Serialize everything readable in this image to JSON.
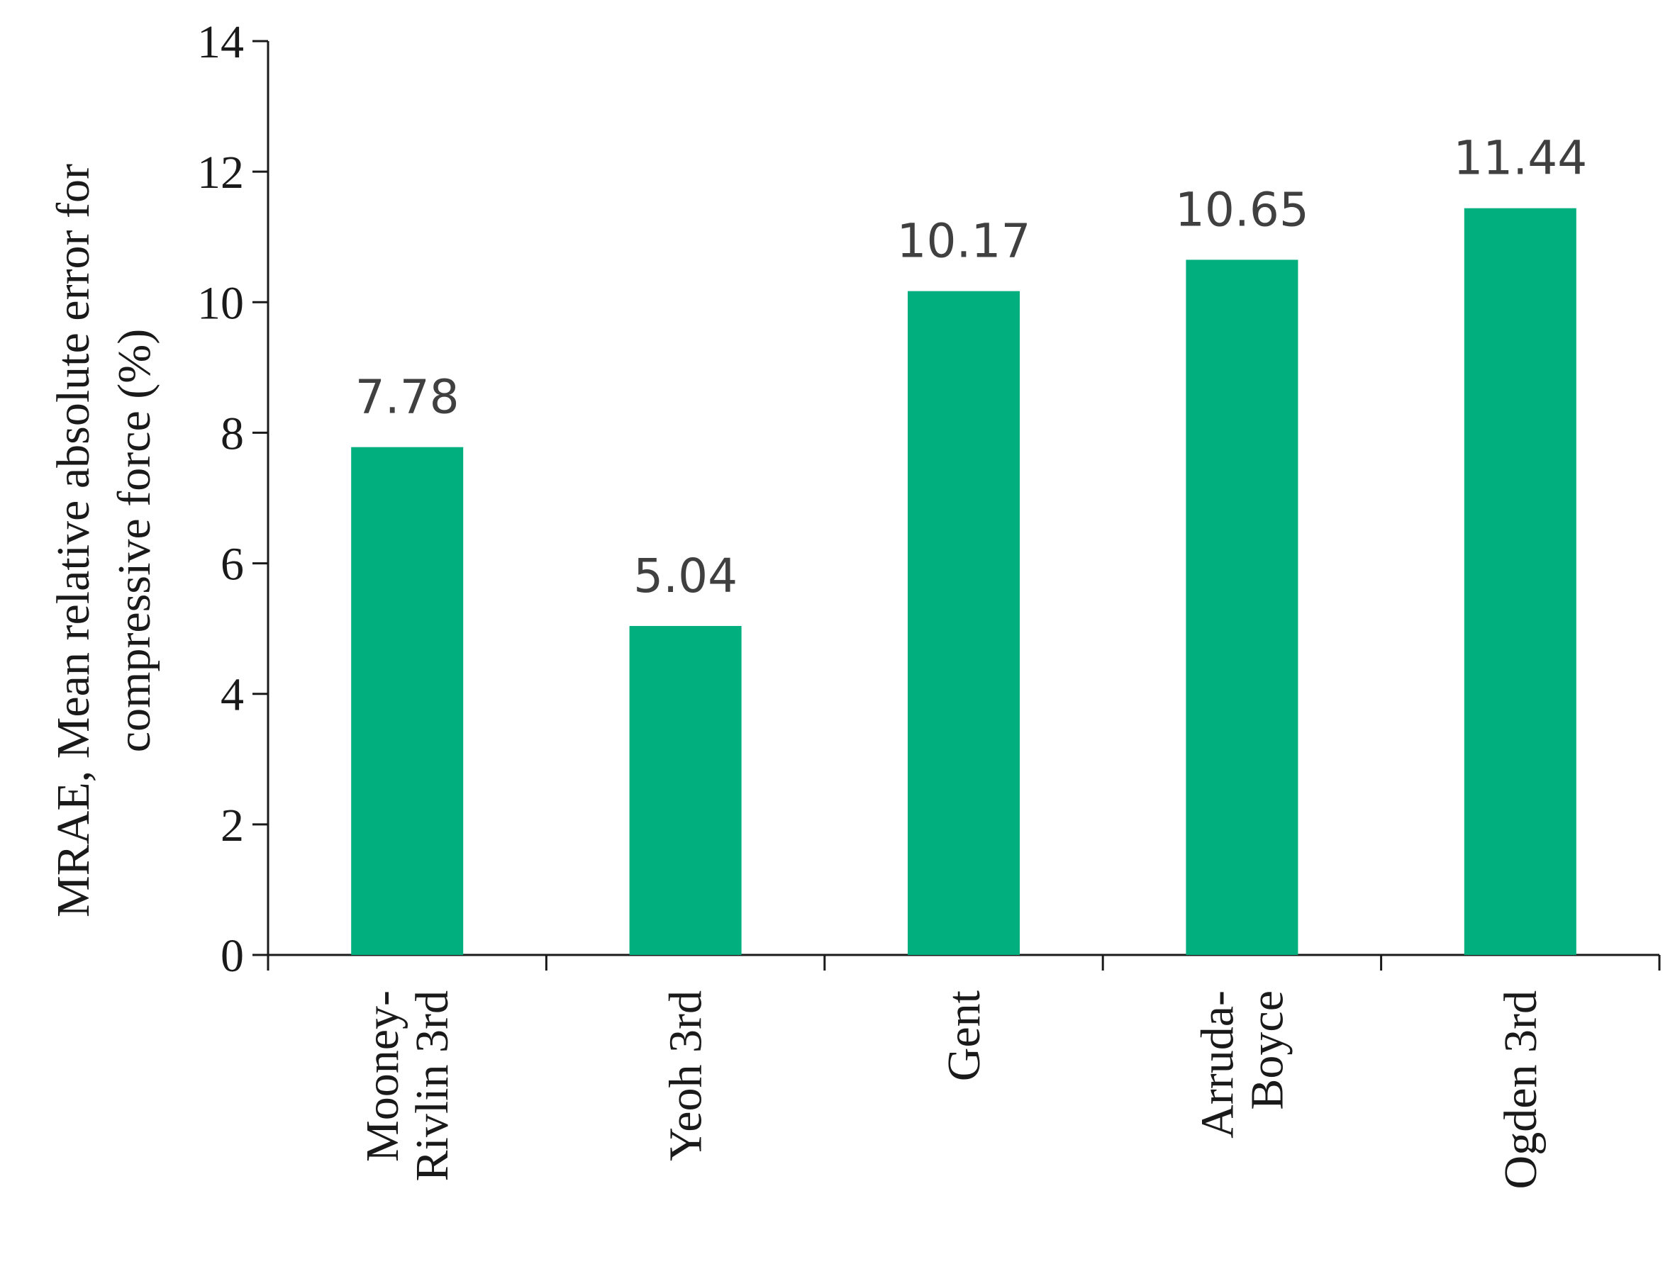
{
  "chart_data": {
    "type": "bar",
    "categories": [
      [
        "Mooney-",
        "Rivlin 3rd"
      ],
      [
        "Yeoh 3rd"
      ],
      [
        "Gent"
      ],
      [
        "Arruda-",
        "Boyce"
      ],
      [
        "Ogden 3rd"
      ]
    ],
    "values": [
      7.78,
      5.04,
      10.17,
      10.65,
      11.44
    ],
    "data_labels": [
      "7.78",
      "5.04",
      "10.17",
      "10.65",
      "11.44"
    ],
    "ylabel": [
      "MRAE, Mean relative absolute error for",
      "compressive force (%)"
    ],
    "xlabel": "",
    "ylim": [
      0,
      14
    ],
    "yticks": [
      0,
      2,
      4,
      6,
      8,
      10,
      12,
      14
    ],
    "grid": false,
    "legend": "none",
    "bar_color": "#00AE7E"
  }
}
